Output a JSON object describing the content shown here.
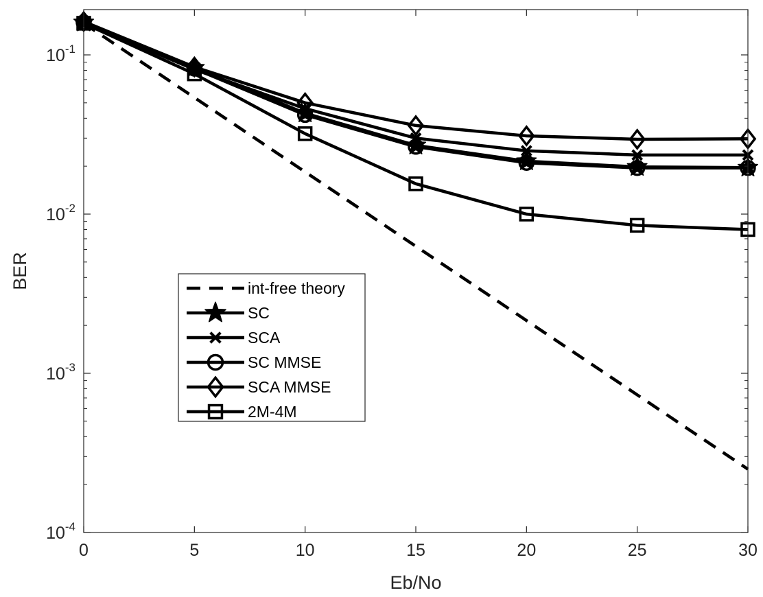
{
  "chart_data": {
    "type": "line",
    "title": "",
    "xlabel": "Eb/No",
    "ylabel": "BER",
    "xlim": [
      0,
      30
    ],
    "ylim": [
      0.0001,
      0.2
    ],
    "y_scale": "log",
    "grid": false,
    "legend_position": "center-left",
    "x_ticks": [
      0,
      5,
      10,
      15,
      20,
      25,
      30
    ],
    "x_tick_labels": [
      "0",
      "5",
      "10",
      "15",
      "20",
      "25",
      "30"
    ],
    "y_ticks": [
      0.0001,
      0.001,
      0.01,
      0.1
    ],
    "y_tick_labels": [
      {
        "base": "10",
        "exp": "-4"
      },
      {
        "base": "10",
        "exp": "-3"
      },
      {
        "base": "10",
        "exp": "-2"
      },
      {
        "base": "10",
        "exp": "-1"
      }
    ],
    "x": [
      0,
      5,
      10,
      15,
      20,
      25,
      30
    ],
    "series": [
      {
        "name": "int-free theory",
        "marker": "none",
        "line": "dashed",
        "color": "#000000",
        "x": [
          0,
          30
        ],
        "values": [
          0.158,
          0.00025
        ]
      },
      {
        "name": "SC",
        "marker": "star",
        "line": "solid",
        "color": "#000000",
        "values": [
          0.16,
          0.083,
          0.043,
          0.027,
          0.0215,
          0.0198,
          0.0196
        ]
      },
      {
        "name": "SCA",
        "marker": "x",
        "line": "solid",
        "color": "#000000",
        "values": [
          0.16,
          0.081,
          0.046,
          0.03,
          0.025,
          0.0235,
          0.0235
        ]
      },
      {
        "name": "SC MMSE",
        "marker": "circle",
        "line": "solid",
        "color": "#000000",
        "values": [
          0.16,
          0.082,
          0.042,
          0.0265,
          0.021,
          0.0195,
          0.0195
        ]
      },
      {
        "name": "SCA MMSE",
        "marker": "diamond",
        "line": "solid",
        "color": "#000000",
        "values": [
          0.162,
          0.084,
          0.05,
          0.036,
          0.031,
          0.0295,
          0.0297
        ]
      },
      {
        "name": "2M-4M",
        "marker": "square",
        "line": "solid",
        "color": "#000000",
        "values": [
          0.158,
          0.076,
          0.032,
          0.0155,
          0.01,
          0.0085,
          0.008
        ]
      }
    ]
  }
}
